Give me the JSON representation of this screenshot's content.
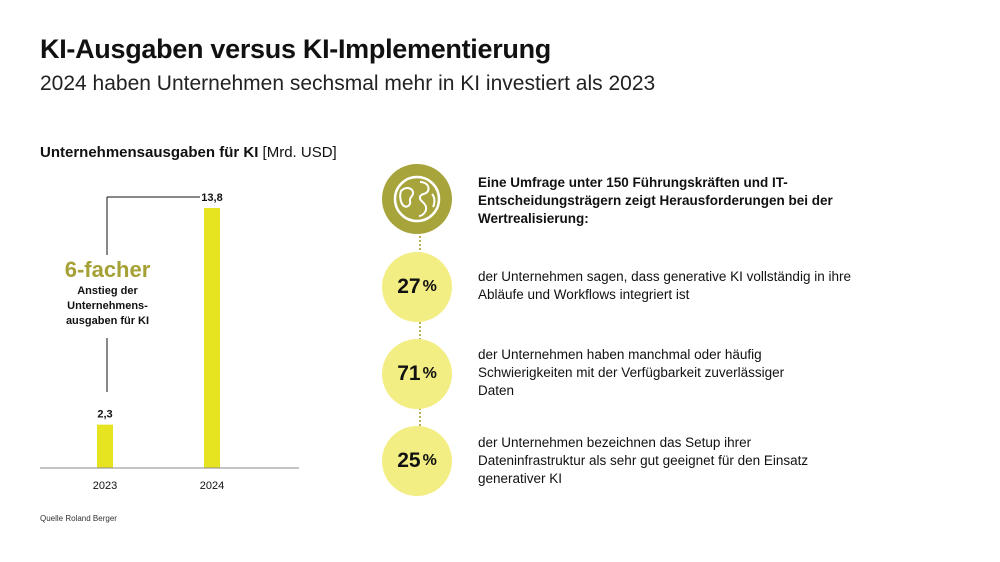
{
  "header": {
    "title": "KI-Ausgaben versus KI-Implementierung",
    "subtitle": "2024 haben Unternehmen sechsmal mehr in KI investiert als 2023"
  },
  "chart_heading": {
    "bold": "Unternehmensausgaben für KI",
    "unit": "[Mrd. USD]"
  },
  "chart_data": {
    "type": "bar",
    "title": "Unternehmensausgaben für KI [Mrd. USD]",
    "categories": [
      "2023",
      "2024"
    ],
    "values": [
      2.3,
      13.8
    ],
    "value_labels": [
      "2,3",
      "13,8"
    ],
    "bar_color": "#e6e320",
    "annotation": {
      "highlight": "6-facher",
      "text": "Anstieg der Unternehmens-ausgaben für KI"
    }
  },
  "annotation": {
    "highlight": "6-facher",
    "line1": "Anstieg der",
    "line2": "Unternehmens-",
    "line3": "ausgaben für KI"
  },
  "source": "Quelle Roland Berger",
  "survey": {
    "intro": "Eine Umfrage unter 150 Führungskräften und IT-Entscheidungsträgern zeigt Herausforderungen bei der Wertrealisierung:",
    "icon": "globe-icon",
    "items": [
      {
        "value": "27",
        "unit": "%",
        "text": "der Unternehmen sagen, dass generative KI vollständig in ihre Abläufe und Workflows integriert ist"
      },
      {
        "value": "71",
        "unit": "%",
        "text": "der Unternehmen haben manchmal oder häufig Schwierigkeiten mit der Verfügbarkeit zuverlässiger Daten"
      },
      {
        "value": "25",
        "unit": "%",
        "text": "der Unternehmen bezeichnen das Setup ihrer Dateninfrastruktur als sehr gut geeignet für den Einsatz generativer KI"
      }
    ]
  },
  "colors": {
    "accent_olive": "#a7a43b",
    "circle_yellow": "#f3ee84",
    "bar_yellow": "#e6e320"
  }
}
